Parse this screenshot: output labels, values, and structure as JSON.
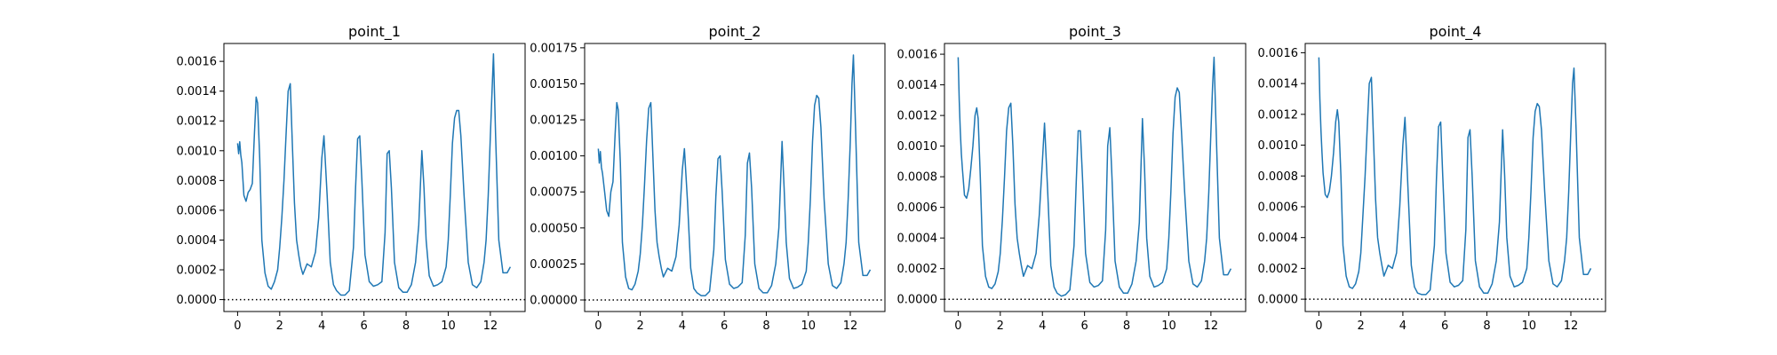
{
  "colors": {
    "series": "#1f77b4",
    "reference_line": "#000000"
  },
  "chart_data": [
    {
      "type": "line",
      "title": "point_1",
      "xlabel": "",
      "ylabel": "",
      "xlim": [
        -0.65,
        13.65
      ],
      "ylim": [
        -8e-05,
        0.00172
      ],
      "xticks": [
        0,
        2,
        4,
        6,
        8,
        10,
        12
      ],
      "yticks": [
        0,
        0.0002,
        0.0004,
        0.0006,
        0.0008,
        0.001,
        0.0012,
        0.0014,
        0.0016
      ],
      "ytick_labels": [
        "0.0000",
        "0.0002",
        "0.0004",
        "0.0006",
        "0.0008",
        "0.0010",
        "0.0012",
        "0.0014",
        "0.0016"
      ],
      "reference_line": {
        "y": 0,
        "style": "dotted"
      },
      "grid": false,
      "series": [
        {
          "x": [
            0,
            0.05,
            0.1,
            0.15,
            0.2,
            0.3,
            0.4,
            0.5,
            0.6,
            0.7,
            0.8,
            0.88,
            0.95,
            1.05,
            1.15,
            1.3,
            1.45,
            1.6,
            1.75,
            1.9,
            2.0,
            2.1,
            2.2,
            2.3,
            2.4,
            2.5,
            2.6,
            2.7,
            2.8,
            2.9,
            3.0,
            3.1,
            3.3,
            3.5,
            3.7,
            3.85,
            4.0,
            4.1,
            4.25,
            4.4,
            4.55,
            4.7,
            4.9,
            5.1,
            5.3,
            5.5,
            5.6,
            5.7,
            5.8,
            5.9,
            6.05,
            6.25,
            6.45,
            6.65,
            6.85,
            7.0,
            7.1,
            7.2,
            7.3,
            7.45,
            7.65,
            7.85,
            8.05,
            8.25,
            8.45,
            8.6,
            8.75,
            8.85,
            8.95,
            9.1,
            9.3,
            9.5,
            9.7,
            9.9,
            10.0,
            10.1,
            10.2,
            10.3,
            10.4,
            10.5,
            10.6,
            10.75,
            10.95,
            11.15,
            11.35,
            11.55,
            11.7,
            11.8,
            11.9,
            12.0,
            12.08,
            12.15,
            12.25,
            12.4,
            12.6,
            12.8,
            12.95
          ],
          "y": [
            0.00105,
            0.00098,
            0.00106,
            0.00097,
            0.00092,
            0.0007,
            0.00066,
            0.00072,
            0.00074,
            0.00078,
            0.00112,
            0.00136,
            0.00132,
            0.00095,
            0.0004,
            0.00018,
            9e-05,
            7e-05,
            0.00012,
            0.0002,
            0.00035,
            0.00055,
            0.0008,
            0.0011,
            0.0014,
            0.00145,
            0.00105,
            0.00065,
            0.0004,
            0.0003,
            0.00022,
            0.00017,
            0.00024,
            0.00022,
            0.00032,
            0.00055,
            0.00095,
            0.0011,
            0.0007,
            0.00025,
            0.0001,
            6e-05,
            3e-05,
            3e-05,
            6e-05,
            0.00035,
            0.00075,
            0.00108,
            0.0011,
            0.0008,
            0.0003,
            0.00012,
            9e-05,
            0.0001,
            0.00012,
            0.00045,
            0.00098,
            0.001,
            0.00075,
            0.00025,
            8e-05,
            5e-05,
            5e-05,
            0.0001,
            0.00025,
            0.0005,
            0.001,
            0.00075,
            0.0004,
            0.00016,
            9e-05,
            0.0001,
            0.00012,
            0.00022,
            0.0004,
            0.0007,
            0.00105,
            0.00122,
            0.00127,
            0.00127,
            0.0011,
            0.0007,
            0.00025,
            0.0001,
            8e-05,
            0.00012,
            0.00025,
            0.0004,
            0.0007,
            0.0011,
            0.0014,
            0.00165,
            0.0011,
            0.0004,
            0.00018,
            0.00018,
            0.00022
          ]
        }
      ]
    },
    {
      "type": "line",
      "title": "point_2",
      "xlabel": "",
      "ylabel": "",
      "xlim": [
        -0.65,
        13.65
      ],
      "ylim": [
        -8e-05,
        0.00178
      ],
      "xticks": [
        0,
        2,
        4,
        6,
        8,
        10,
        12
      ],
      "yticks": [
        0,
        0.00025,
        0.0005,
        0.00075,
        0.001,
        0.00125,
        0.0015,
        0.00175
      ],
      "ytick_labels": [
        "0.00000",
        "0.00025",
        "0.00050",
        "0.00075",
        "0.00100",
        "0.00125",
        "0.00150",
        "0.00175"
      ],
      "reference_line": {
        "y": 0,
        "style": "dotted"
      },
      "grid": false,
      "series": [
        {
          "x": [
            0,
            0.05,
            0.1,
            0.15,
            0.2,
            0.3,
            0.4,
            0.5,
            0.6,
            0.7,
            0.8,
            0.88,
            0.95,
            1.05,
            1.15,
            1.3,
            1.45,
            1.6,
            1.75,
            1.9,
            2.0,
            2.1,
            2.2,
            2.3,
            2.4,
            2.5,
            2.6,
            2.7,
            2.8,
            2.9,
            3.0,
            3.1,
            3.3,
            3.5,
            3.7,
            3.85,
            4.0,
            4.1,
            4.25,
            4.4,
            4.55,
            4.7,
            4.9,
            5.1,
            5.3,
            5.5,
            5.6,
            5.7,
            5.8,
            5.9,
            6.05,
            6.25,
            6.45,
            6.65,
            6.85,
            7.0,
            7.1,
            7.2,
            7.3,
            7.45,
            7.65,
            7.85,
            8.05,
            8.25,
            8.45,
            8.6,
            8.75,
            8.85,
            8.95,
            9.1,
            9.3,
            9.5,
            9.7,
            9.9,
            10.0,
            10.1,
            10.2,
            10.3,
            10.4,
            10.5,
            10.6,
            10.75,
            10.95,
            11.15,
            11.35,
            11.55,
            11.7,
            11.8,
            11.9,
            12.0,
            12.08,
            12.15,
            12.25,
            12.4,
            12.6,
            12.8,
            12.95
          ],
          "y": [
            0.00105,
            0.00095,
            0.00103,
            0.00092,
            0.00088,
            0.00075,
            0.00062,
            0.00058,
            0.00075,
            0.00082,
            0.00115,
            0.00137,
            0.00132,
            0.00095,
            0.0004,
            0.00016,
            8e-05,
            7e-05,
            0.00011,
            0.0002,
            0.00032,
            0.00052,
            0.0008,
            0.0011,
            0.00133,
            0.00137,
            0.001,
            0.00062,
            0.0004,
            0.0003,
            0.00022,
            0.00016,
            0.00022,
            0.0002,
            0.0003,
            0.00052,
            0.0009,
            0.00105,
            0.00068,
            0.00022,
            8e-05,
            5e-05,
            3e-05,
            3e-05,
            6e-05,
            0.00035,
            0.00072,
            0.00098,
            0.001,
            0.00075,
            0.00028,
            0.00011,
            8e-05,
            9e-05,
            0.00012,
            0.00045,
            0.00095,
            0.00102,
            0.00078,
            0.00025,
            8e-05,
            5e-05,
            5e-05,
            0.0001,
            0.00025,
            0.0005,
            0.0011,
            0.00078,
            0.0004,
            0.00015,
            8e-05,
            9e-05,
            0.00011,
            0.0002,
            0.0004,
            0.0007,
            0.0011,
            0.00135,
            0.00142,
            0.0014,
            0.0012,
            0.0007,
            0.00025,
            0.0001,
            8e-05,
            0.00012,
            0.00025,
            0.0004,
            0.0007,
            0.0011,
            0.0015,
            0.0017,
            0.0012,
            0.0004,
            0.00017,
            0.00017,
            0.00021
          ]
        }
      ]
    },
    {
      "type": "line",
      "title": "point_3",
      "xlabel": "",
      "ylabel": "",
      "xlim": [
        -0.65,
        13.65
      ],
      "ylim": [
        -8e-05,
        0.00167
      ],
      "xticks": [
        0,
        2,
        4,
        6,
        8,
        10,
        12
      ],
      "yticks": [
        0,
        0.0002,
        0.0004,
        0.0006,
        0.0008,
        0.001,
        0.0012,
        0.0014,
        0.0016
      ],
      "ytick_labels": [
        "0.0000",
        "0.0002",
        "0.0004",
        "0.0006",
        "0.0008",
        "0.0010",
        "0.0012",
        "0.0014",
        "0.0016"
      ],
      "reference_line": {
        "y": 0,
        "style": "dotted"
      },
      "grid": false,
      "series": [
        {
          "x": [
            0,
            0.05,
            0.1,
            0.15,
            0.2,
            0.3,
            0.4,
            0.5,
            0.6,
            0.7,
            0.8,
            0.88,
            0.95,
            1.05,
            1.15,
            1.3,
            1.45,
            1.6,
            1.75,
            1.9,
            2.0,
            2.1,
            2.2,
            2.3,
            2.4,
            2.5,
            2.6,
            2.7,
            2.8,
            2.9,
            3.0,
            3.1,
            3.3,
            3.5,
            3.7,
            3.85,
            4.0,
            4.1,
            4.25,
            4.4,
            4.55,
            4.7,
            4.9,
            5.1,
            5.3,
            5.5,
            5.6,
            5.7,
            5.8,
            5.9,
            6.05,
            6.25,
            6.45,
            6.65,
            6.85,
            7.0,
            7.1,
            7.2,
            7.3,
            7.45,
            7.65,
            7.85,
            8.05,
            8.25,
            8.45,
            8.6,
            8.75,
            8.85,
            8.95,
            9.1,
            9.3,
            9.5,
            9.7,
            9.9,
            10.0,
            10.1,
            10.2,
            10.3,
            10.4,
            10.5,
            10.6,
            10.75,
            10.95,
            11.15,
            11.35,
            11.55,
            11.7,
            11.8,
            11.9,
            12.0,
            12.08,
            12.15,
            12.25,
            12.4,
            12.6,
            12.8,
            12.95
          ],
          "y": [
            0.00158,
            0.0013,
            0.0011,
            0.00095,
            0.00085,
            0.00068,
            0.00066,
            0.00072,
            0.00085,
            0.001,
            0.0012,
            0.00125,
            0.00118,
            0.0008,
            0.00035,
            0.00015,
            8e-05,
            7e-05,
            0.0001,
            0.00018,
            0.0003,
            0.00052,
            0.0008,
            0.0011,
            0.00125,
            0.00128,
            0.001,
            0.00062,
            0.0004,
            0.0003,
            0.00022,
            0.00015,
            0.00022,
            0.0002,
            0.0003,
            0.00055,
            0.0009,
            0.00115,
            0.0007,
            0.00022,
            8e-05,
            4e-05,
            2e-05,
            3e-05,
            6e-05,
            0.00035,
            0.00075,
            0.0011,
            0.0011,
            0.0008,
            0.0003,
            0.00011,
            8e-05,
            9e-05,
            0.00012,
            0.00045,
            0.001,
            0.00112,
            0.0008,
            0.00025,
            8e-05,
            4e-05,
            4e-05,
            0.0001,
            0.00025,
            0.0005,
            0.00118,
            0.00085,
            0.0004,
            0.00015,
            8e-05,
            9e-05,
            0.00011,
            0.0002,
            0.0004,
            0.0007,
            0.00108,
            0.00132,
            0.00138,
            0.00135,
            0.0011,
            0.0007,
            0.00025,
            0.0001,
            8e-05,
            0.00012,
            0.00025,
            0.0004,
            0.0007,
            0.0011,
            0.0014,
            0.00158,
            0.0011,
            0.0004,
            0.00016,
            0.00016,
            0.0002
          ]
        }
      ]
    },
    {
      "type": "line",
      "title": "point_4",
      "xlabel": "",
      "ylabel": "",
      "xlim": [
        -0.65,
        13.65
      ],
      "ylim": [
        -8e-05,
        0.00166
      ],
      "xticks": [
        0,
        2,
        4,
        6,
        8,
        10,
        12
      ],
      "yticks": [
        0,
        0.0002,
        0.0004,
        0.0006,
        0.0008,
        0.001,
        0.0012,
        0.0014,
        0.0016
      ],
      "ytick_labels": [
        "0.0000",
        "0.0002",
        "0.0004",
        "0.0006",
        "0.0008",
        "0.0010",
        "0.0012",
        "0.0014",
        "0.0016"
      ],
      "reference_line": {
        "y": 0,
        "style": "dotted"
      },
      "grid": false,
      "series": [
        {
          "x": [
            0,
            0.05,
            0.1,
            0.15,
            0.2,
            0.3,
            0.4,
            0.5,
            0.6,
            0.7,
            0.8,
            0.88,
            0.95,
            1.05,
            1.15,
            1.3,
            1.45,
            1.6,
            1.75,
            1.9,
            2.0,
            2.1,
            2.2,
            2.3,
            2.4,
            2.5,
            2.6,
            2.7,
            2.8,
            2.9,
            3.0,
            3.1,
            3.3,
            3.5,
            3.7,
            3.85,
            4.0,
            4.1,
            4.25,
            4.4,
            4.55,
            4.7,
            4.9,
            5.1,
            5.3,
            5.5,
            5.6,
            5.7,
            5.8,
            5.9,
            6.05,
            6.25,
            6.45,
            6.65,
            6.85,
            7.0,
            7.1,
            7.2,
            7.3,
            7.45,
            7.65,
            7.85,
            8.05,
            8.25,
            8.45,
            8.6,
            8.75,
            8.85,
            8.95,
            9.1,
            9.3,
            9.5,
            9.7,
            9.9,
            10.0,
            10.1,
            10.2,
            10.3,
            10.4,
            10.5,
            10.6,
            10.75,
            10.95,
            11.15,
            11.35,
            11.55,
            11.7,
            11.8,
            11.9,
            12.0,
            12.08,
            12.15,
            12.25,
            12.4,
            12.6,
            12.8,
            12.95
          ],
          "y": [
            0.00157,
            0.0013,
            0.0011,
            0.00095,
            0.00082,
            0.00068,
            0.00066,
            0.0007,
            0.0008,
            0.00095,
            0.00115,
            0.00123,
            0.00115,
            0.0008,
            0.00035,
            0.00015,
            8e-05,
            7e-05,
            0.0001,
            0.00018,
            0.0003,
            0.00055,
            0.0008,
            0.0011,
            0.0014,
            0.00144,
            0.00105,
            0.00065,
            0.0004,
            0.0003,
            0.00022,
            0.00015,
            0.00022,
            0.0002,
            0.0003,
            0.0006,
            0.001,
            0.00118,
            0.0007,
            0.00022,
            8e-05,
            4e-05,
            3e-05,
            3e-05,
            6e-05,
            0.00035,
            0.00078,
            0.00112,
            0.00115,
            0.0008,
            0.0003,
            0.00011,
            8e-05,
            9e-05,
            0.00012,
            0.00045,
            0.00105,
            0.0011,
            0.0008,
            0.00025,
            8e-05,
            4e-05,
            4e-05,
            0.0001,
            0.00025,
            0.0005,
            0.0011,
            0.0008,
            0.0004,
            0.00015,
            8e-05,
            9e-05,
            0.00011,
            0.0002,
            0.0004,
            0.0007,
            0.00105,
            0.00122,
            0.00127,
            0.00125,
            0.0011,
            0.0007,
            0.00025,
            0.0001,
            8e-05,
            0.00012,
            0.00025,
            0.0004,
            0.0007,
            0.0011,
            0.0014,
            0.0015,
            0.0011,
            0.0004,
            0.00016,
            0.00016,
            0.0002
          ]
        }
      ]
    }
  ]
}
